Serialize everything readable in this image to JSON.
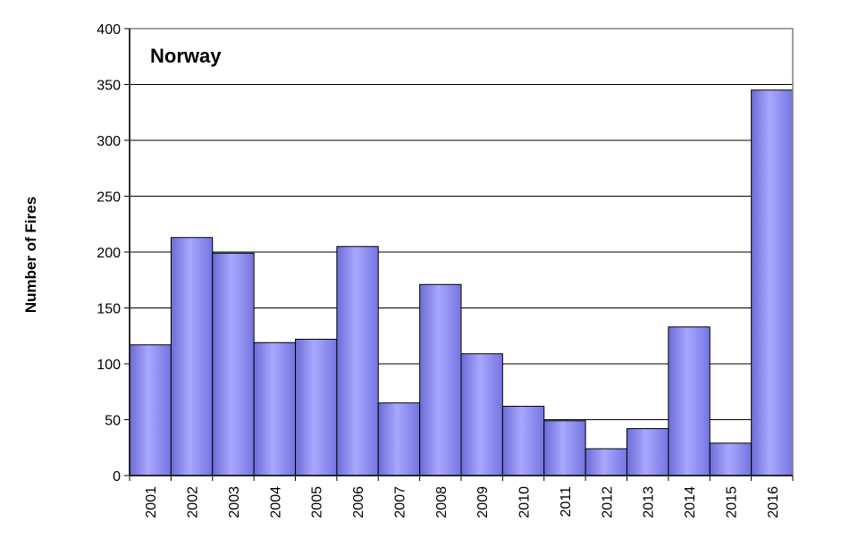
{
  "chart_data": {
    "type": "bar",
    "title": "Norway",
    "xlabel": "",
    "ylabel": "Number of Fires",
    "ylim": [
      0,
      400
    ],
    "yticks": [
      0,
      50,
      100,
      150,
      200,
      250,
      300,
      350,
      400
    ],
    "grid": true,
    "legend": "none",
    "categories": [
      "2001",
      "2002",
      "2003",
      "2004",
      "2005",
      "2006",
      "2007",
      "2008",
      "2009",
      "2010",
      "2011",
      "2012",
      "2013",
      "2014",
      "2015",
      "2016"
    ],
    "values": [
      117,
      213,
      199,
      119,
      122,
      205,
      65,
      171,
      109,
      62,
      49,
      24,
      42,
      133,
      29,
      345
    ],
    "bar_color": "#9999ff",
    "bar_edge_color": "#000000"
  }
}
